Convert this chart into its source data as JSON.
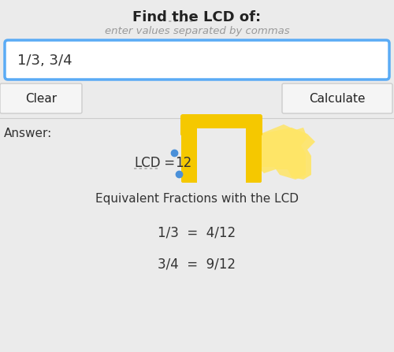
{
  "title": "Find the LCD of:",
  "subtitle": "enter values separated by commas",
  "input_text": "1/3, 3/4",
  "answer_label": "Answer:",
  "lcd_text": "LCD",
  "equals_text": " = ",
  "lcd_value": "12",
  "equiv_title": "Equivalent Fractions with the LCD",
  "equiv1": "1/3  =  4/12",
  "equiv2": "3/4  =  9/12",
  "clear_btn": "Clear",
  "calc_btn": "Calculate",
  "bg_color": "#ebebeb",
  "white": "#ffffff",
  "input_border": "#5aabf5",
  "btn_border": "#cccccc",
  "btn_bg": "#f5f5f5",
  "title_color": "#222222",
  "subtitle_color": "#999999",
  "input_text_color": "#333333",
  "answer_color": "#333333",
  "lcd_color": "#333333",
  "equiv_color": "#333333",
  "highlight_yellow": "#F5C800",
  "highlight_yellow_light": "#FFE566",
  "highlight_dot_color": "#4A90D9",
  "separator_color": "#cccccc"
}
